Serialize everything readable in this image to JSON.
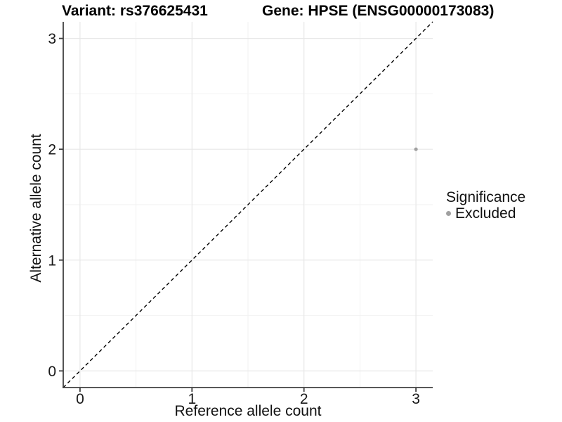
{
  "chart_data": {
    "type": "scatter",
    "title_left": "Variant: rs376625431",
    "title_right": "Gene: HPSE (ENSG00000173083)",
    "xlabel": "Reference allele count",
    "ylabel": "Alternative allele count",
    "xlim": [
      -0.15,
      3.15
    ],
    "ylim": [
      -0.15,
      3.15
    ],
    "xticks": [
      0,
      1,
      2,
      3
    ],
    "yticks": [
      0,
      1,
      2,
      3
    ],
    "minor_gridlines": true,
    "grid": true,
    "points": [
      {
        "x": 3,
        "y": 2,
        "series": "Excluded"
      }
    ],
    "reference_line": {
      "slope": 1,
      "intercept": 0,
      "style": "dashed",
      "color": "#000000"
    },
    "legend": {
      "title": "Significance",
      "position": "right",
      "items": [
        {
          "label": "Excluded",
          "color": "#a0a0a0"
        }
      ]
    },
    "colors": {
      "background": "#ffffff",
      "grid_major": "#e7e7e7",
      "grid_minor": "#f2f2f2",
      "axis_line": "#404040",
      "tick_label": "#191919",
      "point": "#a0a0a0"
    }
  }
}
